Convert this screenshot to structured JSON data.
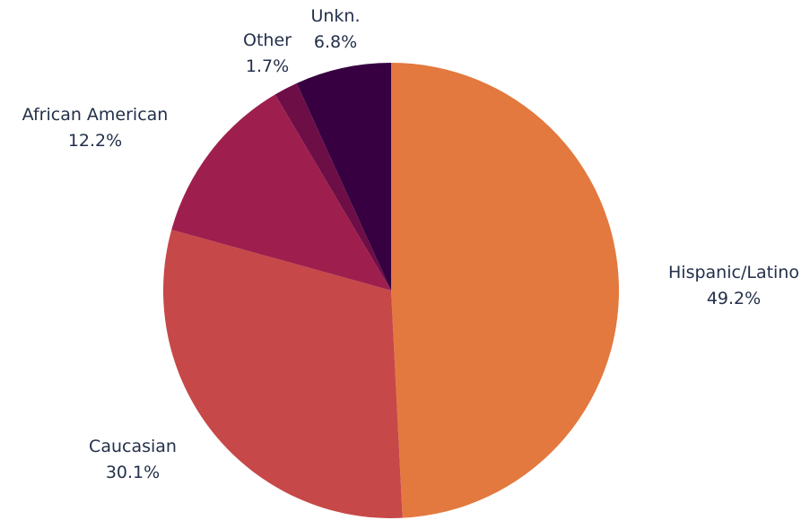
{
  "chart_data": {
    "type": "pie",
    "title": "",
    "start_angle_deg": 0,
    "direction": "clockwise",
    "slices": [
      {
        "label": "Hispanic/Latino",
        "value": 49.2,
        "display": "49.2%",
        "color": "#E3793E"
      },
      {
        "label": "Caucasian",
        "value": 30.1,
        "display": "30.1%",
        "color": "#C74848"
      },
      {
        "label": "African American",
        "value": 12.2,
        "display": "12.2%",
        "color": "#9E1F4D"
      },
      {
        "label": "Other",
        "value": 1.7,
        "display": "1.7%",
        "color": "#6E0E46"
      },
      {
        "label": "Unkn.",
        "value": 6.8,
        "display": "6.8%",
        "color": "#360041"
      }
    ]
  }
}
